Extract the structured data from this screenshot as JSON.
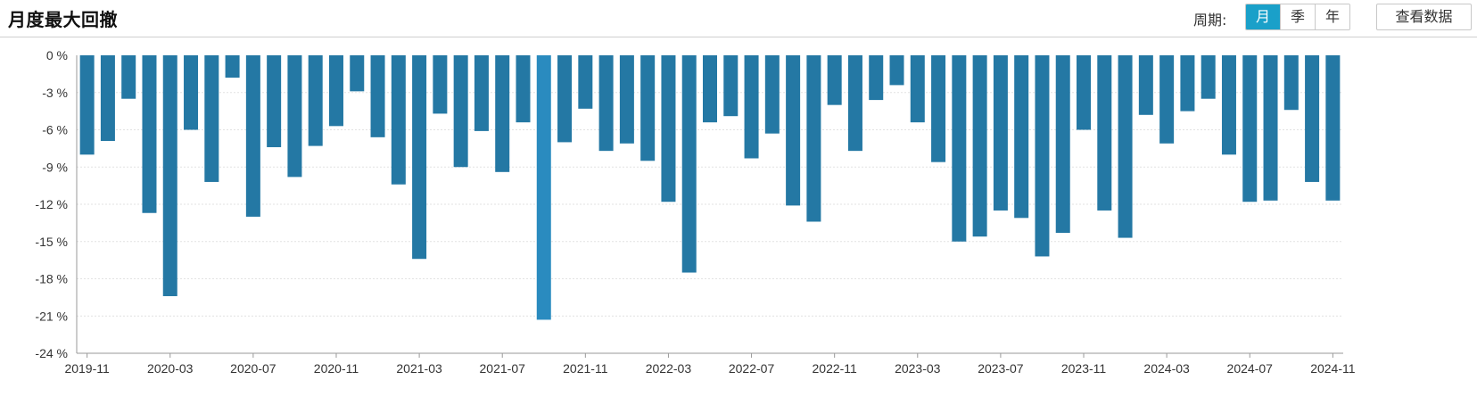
{
  "header": {
    "title": "月度最大回撤",
    "period_label": "周期:",
    "period_options": [
      "月",
      "季",
      "年"
    ],
    "period_selected": "月",
    "view_data_label": "查看数据"
  },
  "colors": {
    "bar": "#2478a4",
    "bar_highlight": "#2a8bbf",
    "active_button": "#1aa0c9",
    "grid": "#e2e2e2",
    "axis": "#999999"
  },
  "chart_data": {
    "type": "bar",
    "title": "",
    "xlabel": "",
    "ylabel": "",
    "ylim": [
      -24,
      0
    ],
    "y_ticks": [
      0,
      -3,
      -6,
      -9,
      -12,
      -15,
      -18,
      -21,
      -24
    ],
    "y_tick_labels": [
      "0 %",
      "-3 %",
      "-6 %",
      "-9 %",
      "-12 %",
      "-15 %",
      "-18 %",
      "-21 %",
      "-24 %"
    ],
    "x_tick_labels": [
      "2019-11",
      "2020-03",
      "2020-07",
      "2020-11",
      "2021-03",
      "2021-07",
      "2021-11",
      "2022-03",
      "2022-07",
      "2022-11",
      "2023-03",
      "2023-07",
      "2023-11",
      "2024-03",
      "2024-07",
      "2024-11"
    ],
    "grid": true,
    "legend": "none",
    "highlight_category": "2021-09",
    "categories": [
      "2019-11",
      "2019-12",
      "2020-01",
      "2020-02",
      "2020-03",
      "2020-04",
      "2020-05",
      "2020-06",
      "2020-07",
      "2020-08",
      "2020-09",
      "2020-10",
      "2020-11",
      "2020-12",
      "2021-01",
      "2021-02",
      "2021-03",
      "2021-04",
      "2021-05",
      "2021-06",
      "2021-07",
      "2021-08",
      "2021-09",
      "2021-10",
      "2021-11",
      "2021-12",
      "2022-01",
      "2022-02",
      "2022-03",
      "2022-04",
      "2022-05",
      "2022-06",
      "2022-07",
      "2022-08",
      "2022-09",
      "2022-10",
      "2022-11",
      "2022-12",
      "2023-01",
      "2023-02",
      "2023-03",
      "2023-04",
      "2023-05",
      "2023-06",
      "2023-07",
      "2023-08",
      "2023-09",
      "2023-10",
      "2023-11",
      "2023-12",
      "2024-01",
      "2024-02",
      "2024-03",
      "2024-04",
      "2024-05",
      "2024-06",
      "2024-07",
      "2024-08",
      "2024-09",
      "2024-10",
      "2024-11"
    ],
    "values": [
      -8.0,
      -6.9,
      -3.5,
      -12.7,
      -19.4,
      -6.0,
      -10.2,
      -1.8,
      -13.0,
      -7.4,
      -9.8,
      -7.3,
      -5.7,
      -2.9,
      -6.6,
      -10.4,
      -16.4,
      -4.7,
      -9.0,
      -6.1,
      -9.4,
      -5.4,
      -21.3,
      -7.0,
      -4.3,
      -7.7,
      -7.1,
      -8.5,
      -11.8,
      -17.5,
      -5.4,
      -4.9,
      -8.3,
      -6.3,
      -12.1,
      -13.4,
      -4.0,
      -7.7,
      -3.6,
      -2.4,
      -5.4,
      -8.6,
      -15.0,
      -14.6,
      -12.5,
      -13.1,
      -16.2,
      -14.3,
      -6.0,
      -12.5,
      -14.7,
      -4.8,
      -7.1,
      -4.5,
      -3.5,
      -8.0,
      -11.8,
      -11.7,
      -4.4,
      -10.2,
      -11.7
    ]
  }
}
